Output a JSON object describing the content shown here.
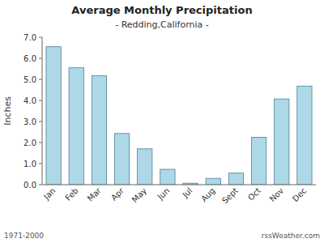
{
  "chart_data": {
    "type": "bar",
    "title": "Average Monthly Precipitation",
    "subtitle": "- Redding,California -",
    "y_label": "Inches",
    "categories": [
      "Jan",
      "Feb",
      "Mar",
      "Apr",
      "May",
      "Jun",
      "Jul",
      "Aug",
      "Sept",
      "Oct",
      "Nov",
      "Dec"
    ],
    "values": [
      6.55,
      5.55,
      5.18,
      2.43,
      1.7,
      0.73,
      0.07,
      0.3,
      0.55,
      2.25,
      4.07,
      4.68
    ],
    "color": "#add8e6",
    "ylim": [
      0.0,
      7.0
    ],
    "yticks": [
      {
        "value": 0.0,
        "label": "0.0"
      },
      {
        "value": 1.0,
        "label": "1.0"
      },
      {
        "value": 2.0,
        "label": "2.0"
      },
      {
        "value": 3.0,
        "label": "3.0"
      },
      {
        "value": 4.0,
        "label": "4.0"
      },
      {
        "value": 5.0,
        "label": "5.0"
      },
      {
        "value": 6.0,
        "label": "6.0"
      },
      {
        "value": 7.0,
        "label": "7.0"
      }
    ],
    "grid": false,
    "annotations": [
      "1971-2000",
      "rssWeather.com"
    ]
  }
}
